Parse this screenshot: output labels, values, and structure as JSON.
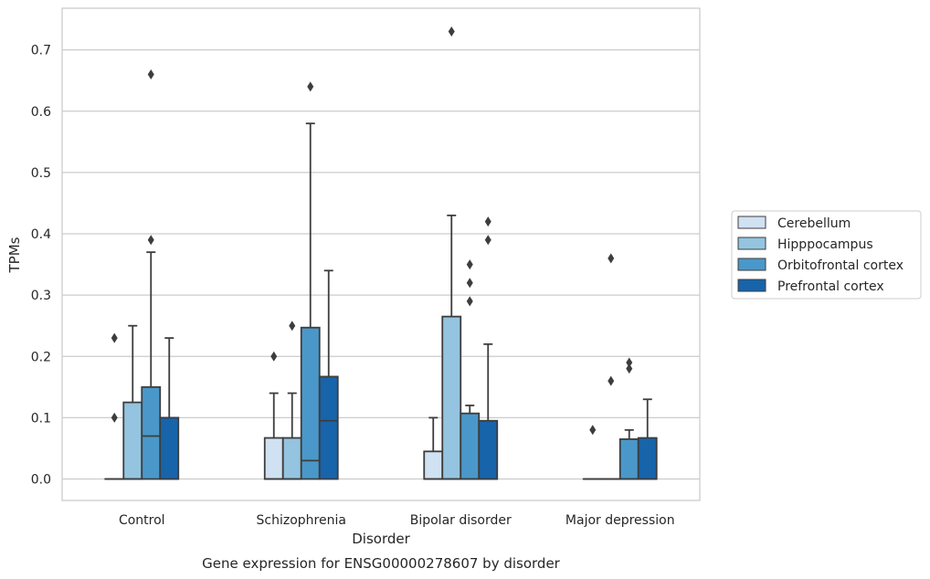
{
  "chart_data": {
    "type": "box",
    "caption": "Gene expression for ENSG00000278607 by disorder",
    "xlabel": "Disorder",
    "ylabel": "TPMs",
    "ylim": [
      -0.035,
      0.768
    ],
    "yticks": [
      "0.0",
      "0.1",
      "0.2",
      "0.3",
      "0.4",
      "0.5",
      "0.6",
      "0.7"
    ],
    "ytick_values": [
      0.0,
      0.1,
      0.2,
      0.3,
      0.4,
      0.5,
      0.6,
      0.7
    ],
    "grid": true,
    "legend_placement": "center-right",
    "categories": [
      "Control",
      "Schizophrenia",
      "Bipolar disorder",
      "Major depression"
    ],
    "series": [
      {
        "name": "Cerebellum",
        "color": "#d0e1f2",
        "boxes": [
          {
            "q1": 0.0,
            "median": 0.0,
            "q3": 0.0,
            "whisker_low": 0.0,
            "whisker_high": 0.0,
            "outliers": [
              0.1,
              0.23
            ]
          },
          {
            "q1": 0.0,
            "median": 0.0,
            "q3": 0.067,
            "whisker_low": 0.0,
            "whisker_high": 0.14,
            "outliers": [
              0.2
            ]
          },
          {
            "q1": 0.0,
            "median": 0.0,
            "q3": 0.045,
            "whisker_low": 0.0,
            "whisker_high": 0.1,
            "outliers": []
          },
          {
            "q1": 0.0,
            "median": 0.0,
            "q3": 0.0,
            "whisker_low": 0.0,
            "whisker_high": 0.0,
            "outliers": [
              0.08
            ]
          }
        ]
      },
      {
        "name": "Hipppocampus",
        "color": "#94c4df",
        "boxes": [
          {
            "q1": 0.0,
            "median": 0.0,
            "q3": 0.125,
            "whisker_low": 0.0,
            "whisker_high": 0.25,
            "outliers": []
          },
          {
            "q1": 0.0,
            "median": 0.0,
            "q3": 0.067,
            "whisker_low": 0.0,
            "whisker_high": 0.14,
            "outliers": [
              0.25
            ]
          },
          {
            "q1": 0.0,
            "median": 0.0,
            "q3": 0.265,
            "whisker_low": 0.0,
            "whisker_high": 0.43,
            "outliers": [
              0.73
            ]
          },
          {
            "q1": 0.0,
            "median": 0.0,
            "q3": 0.0,
            "whisker_low": 0.0,
            "whisker_high": 0.0,
            "outliers": [
              0.16,
              0.36
            ]
          }
        ]
      },
      {
        "name": "Orbitofrontal cortex",
        "color": "#4a98c9",
        "boxes": [
          {
            "q1": 0.0,
            "median": 0.07,
            "q3": 0.15,
            "whisker_low": 0.0,
            "whisker_high": 0.37,
            "outliers": [
              0.39,
              0.66
            ]
          },
          {
            "q1": 0.0,
            "median": 0.03,
            "q3": 0.247,
            "whisker_low": 0.0,
            "whisker_high": 0.58,
            "outliers": [
              0.64
            ]
          },
          {
            "q1": 0.0,
            "median": 0.0,
            "q3": 0.107,
            "whisker_low": 0.0,
            "whisker_high": 0.12,
            "outliers": [
              0.29,
              0.32,
              0.35
            ]
          },
          {
            "q1": 0.0,
            "median": 0.0,
            "q3": 0.065,
            "whisker_low": 0.0,
            "whisker_high": 0.08,
            "outliers": [
              0.18,
              0.19
            ]
          }
        ]
      },
      {
        "name": "Prefrontal cortex",
        "color": "#1764ab",
        "boxes": [
          {
            "q1": 0.0,
            "median": 0.0,
            "q3": 0.1,
            "whisker_low": 0.0,
            "whisker_high": 0.23,
            "outliers": []
          },
          {
            "q1": 0.0,
            "median": 0.095,
            "q3": 0.167,
            "whisker_low": 0.0,
            "whisker_high": 0.34,
            "outliers": []
          },
          {
            "q1": 0.0,
            "median": 0.0,
            "q3": 0.095,
            "whisker_low": 0.0,
            "whisker_high": 0.22,
            "outliers": [
              0.39,
              0.42
            ]
          },
          {
            "q1": 0.0,
            "median": 0.0,
            "q3": 0.067,
            "whisker_low": 0.0,
            "whisker_high": 0.13,
            "outliers": []
          }
        ]
      }
    ]
  }
}
